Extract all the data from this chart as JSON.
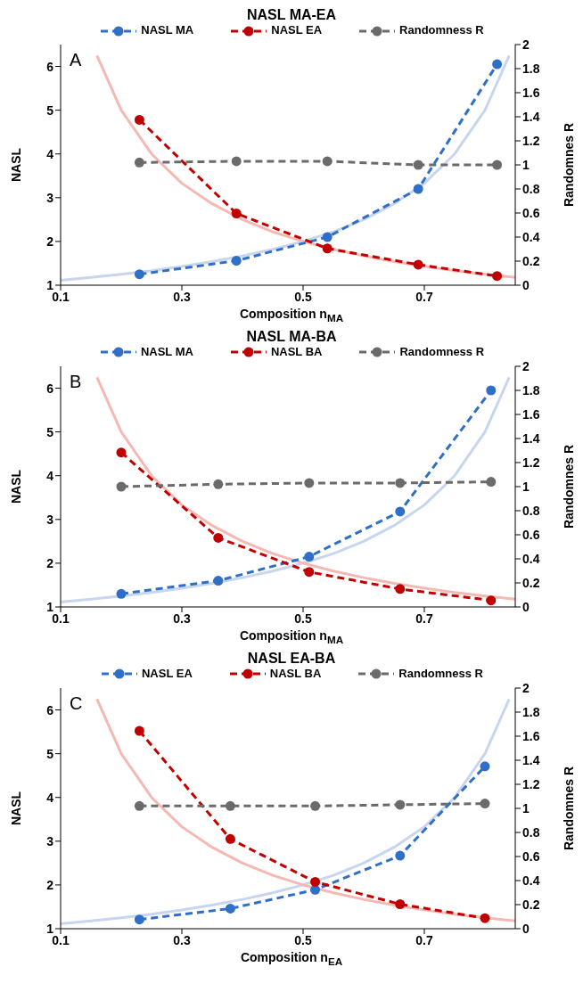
{
  "chart_data": [
    {
      "type": "line",
      "title": "NASL MA-EA",
      "xlabel": "Composition n$_{MA}$",
      "ylabel": "NASL",
      "y2label": "Randomnes R",
      "annotations": [
        "A"
      ],
      "xlim": [
        0.1,
        0.85
      ],
      "xticks": [
        0.1,
        0.3,
        0.5,
        0.7
      ],
      "ylim": [
        1,
        6.5
      ],
      "yticks": [
        1,
        2,
        3,
        4,
        5,
        6
      ],
      "y2lim": [
        0,
        2
      ],
      "y2ticks": [
        0,
        0.2,
        0.4,
        0.6,
        0.8,
        1,
        1.2,
        1.4,
        1.6,
        1.8,
        2
      ],
      "legend": "top",
      "marker": "circle",
      "line_style": "dashed",
      "series": [
        {
          "color": "#c8d5ee",
          "marker": "none",
          "line_style": "solid",
          "x": [
            0.1,
            0.15,
            0.2,
            0.25,
            0.3,
            0.35,
            0.4,
            0.45,
            0.5,
            0.55,
            0.6,
            0.65,
            0.7,
            0.75,
            0.8,
            0.84
          ],
          "values": [
            1.11,
            1.18,
            1.25,
            1.33,
            1.43,
            1.54,
            1.67,
            1.82,
            2,
            2.22,
            2.5,
            2.86,
            3.33,
            4,
            5,
            6.25
          ]
        },
        {
          "color": "#f5b8b3",
          "marker": "none",
          "line_style": "solid",
          "x": [
            0.16,
            0.2,
            0.25,
            0.3,
            0.35,
            0.4,
            0.45,
            0.5,
            0.55,
            0.6,
            0.65,
            0.7,
            0.75,
            0.8,
            0.85
          ],
          "values": [
            6.25,
            5,
            4,
            3.33,
            2.86,
            2.5,
            2.22,
            2,
            1.82,
            1.67,
            1.54,
            1.43,
            1.33,
            1.25,
            1.18
          ]
        },
        {
          "name": "NASL MA",
          "color": "#2f6fc8",
          "x": [
            0.23,
            0.39,
            0.54,
            0.69,
            0.82
          ],
          "values": [
            1.25,
            1.56,
            2.1,
            3.2,
            6.05
          ]
        },
        {
          "name": "NASL EA",
          "color": "#c00000",
          "x": [
            0.23,
            0.39,
            0.54,
            0.69,
            0.82
          ],
          "values": [
            4.78,
            2.64,
            1.84,
            1.47,
            1.21
          ]
        },
        {
          "name": "Randomness R",
          "color": "#6b6b6b",
          "axis": "y2",
          "x": [
            0.23,
            0.39,
            0.54,
            0.69,
            0.82
          ],
          "values": [
            1.02,
            1.03,
            1.03,
            1.0,
            1.0
          ]
        }
      ]
    },
    {
      "type": "line",
      "title": "NASL MA-BA",
      "xlabel": "Composition n$_{MA}$",
      "ylabel": "NASL",
      "y2label": "Randomnes R",
      "annotations": [
        "B"
      ],
      "xlim": [
        0.1,
        0.85
      ],
      "xticks": [
        0.1,
        0.3,
        0.5,
        0.7
      ],
      "ylim": [
        1,
        6.5
      ],
      "yticks": [
        1,
        2,
        3,
        4,
        5,
        6
      ],
      "y2lim": [
        0,
        2
      ],
      "y2ticks": [
        0,
        0.2,
        0.4,
        0.6,
        0.8,
        1,
        1.2,
        1.4,
        1.6,
        1.8,
        2
      ],
      "legend": "top",
      "marker": "circle",
      "line_style": "dashed",
      "series": [
        {
          "color": "#c8d5ee",
          "marker": "none",
          "line_style": "solid",
          "x": [
            0.1,
            0.15,
            0.2,
            0.25,
            0.3,
            0.35,
            0.4,
            0.45,
            0.5,
            0.55,
            0.6,
            0.65,
            0.7,
            0.75,
            0.8,
            0.84
          ],
          "values": [
            1.11,
            1.18,
            1.25,
            1.33,
            1.43,
            1.54,
            1.67,
            1.82,
            2,
            2.22,
            2.5,
            2.86,
            3.33,
            4,
            5,
            6.25
          ]
        },
        {
          "color": "#f5b8b3",
          "marker": "none",
          "line_style": "solid",
          "x": [
            0.16,
            0.2,
            0.25,
            0.3,
            0.35,
            0.4,
            0.45,
            0.5,
            0.55,
            0.6,
            0.65,
            0.7,
            0.75,
            0.8,
            0.85
          ],
          "values": [
            6.25,
            5,
            4,
            3.33,
            2.86,
            2.5,
            2.22,
            2,
            1.82,
            1.67,
            1.54,
            1.43,
            1.33,
            1.25,
            1.18
          ]
        },
        {
          "name": "NASL MA",
          "color": "#2f6fc8",
          "x": [
            0.2,
            0.36,
            0.51,
            0.66,
            0.81
          ],
          "values": [
            1.3,
            1.6,
            2.15,
            3.18,
            5.95
          ]
        },
        {
          "name": "NASL BA",
          "color": "#c00000",
          "x": [
            0.2,
            0.36,
            0.51,
            0.66,
            0.81
          ],
          "values": [
            4.53,
            2.58,
            1.8,
            1.41,
            1.15
          ]
        },
        {
          "name": "Randomness R",
          "color": "#6b6b6b",
          "axis": "y2",
          "x": [
            0.2,
            0.36,
            0.51,
            0.66,
            0.81
          ],
          "values": [
            1.0,
            1.02,
            1.03,
            1.03,
            1.04
          ]
        }
      ]
    },
    {
      "type": "line",
      "title": "NASL EA-BA",
      "xlabel": "Composition n$_{EA}$",
      "ylabel": "NASL",
      "y2label": "Randomnes R",
      "annotations": [
        "C"
      ],
      "xlim": [
        0.1,
        0.85
      ],
      "xticks": [
        0.1,
        0.3,
        0.5,
        0.7
      ],
      "ylim": [
        1,
        6.5
      ],
      "yticks": [
        1,
        2,
        3,
        4,
        5,
        6
      ],
      "y2lim": [
        0,
        2
      ],
      "y2ticks": [
        0,
        0.2,
        0.4,
        0.6,
        0.8,
        1,
        1.2,
        1.4,
        1.6,
        1.8,
        2
      ],
      "legend": "top",
      "marker": "circle",
      "line_style": "dashed",
      "series": [
        {
          "color": "#c8d5ee",
          "marker": "none",
          "line_style": "solid",
          "x": [
            0.1,
            0.15,
            0.2,
            0.25,
            0.3,
            0.35,
            0.4,
            0.45,
            0.5,
            0.55,
            0.6,
            0.65,
            0.7,
            0.75,
            0.8,
            0.84
          ],
          "values": [
            1.11,
            1.18,
            1.25,
            1.33,
            1.43,
            1.54,
            1.67,
            1.82,
            2,
            2.22,
            2.5,
            2.86,
            3.33,
            4,
            5,
            6.25
          ]
        },
        {
          "color": "#f5b8b3",
          "marker": "none",
          "line_style": "solid",
          "x": [
            0.16,
            0.2,
            0.25,
            0.3,
            0.35,
            0.4,
            0.45,
            0.5,
            0.55,
            0.6,
            0.65,
            0.7,
            0.75,
            0.8,
            0.85
          ],
          "values": [
            6.25,
            5,
            4,
            3.33,
            2.86,
            2.5,
            2.22,
            2,
            1.82,
            1.67,
            1.54,
            1.43,
            1.33,
            1.25,
            1.18
          ]
        },
        {
          "name": "NASL EA",
          "color": "#2f6fc8",
          "x": [
            0.23,
            0.38,
            0.52,
            0.66,
            0.8
          ],
          "values": [
            1.21,
            1.46,
            1.89,
            2.67,
            4.71
          ]
        },
        {
          "name": "NASL BA",
          "color": "#c00000",
          "x": [
            0.23,
            0.38,
            0.52,
            0.66,
            0.8
          ],
          "values": [
            5.52,
            3.05,
            2.07,
            1.56,
            1.24
          ]
        },
        {
          "name": "Randomness R",
          "color": "#6b6b6b",
          "axis": "y2",
          "x": [
            0.23,
            0.38,
            0.52,
            0.66,
            0.8
          ],
          "values": [
            1.02,
            1.02,
            1.02,
            1.03,
            1.04
          ]
        }
      ]
    }
  ]
}
